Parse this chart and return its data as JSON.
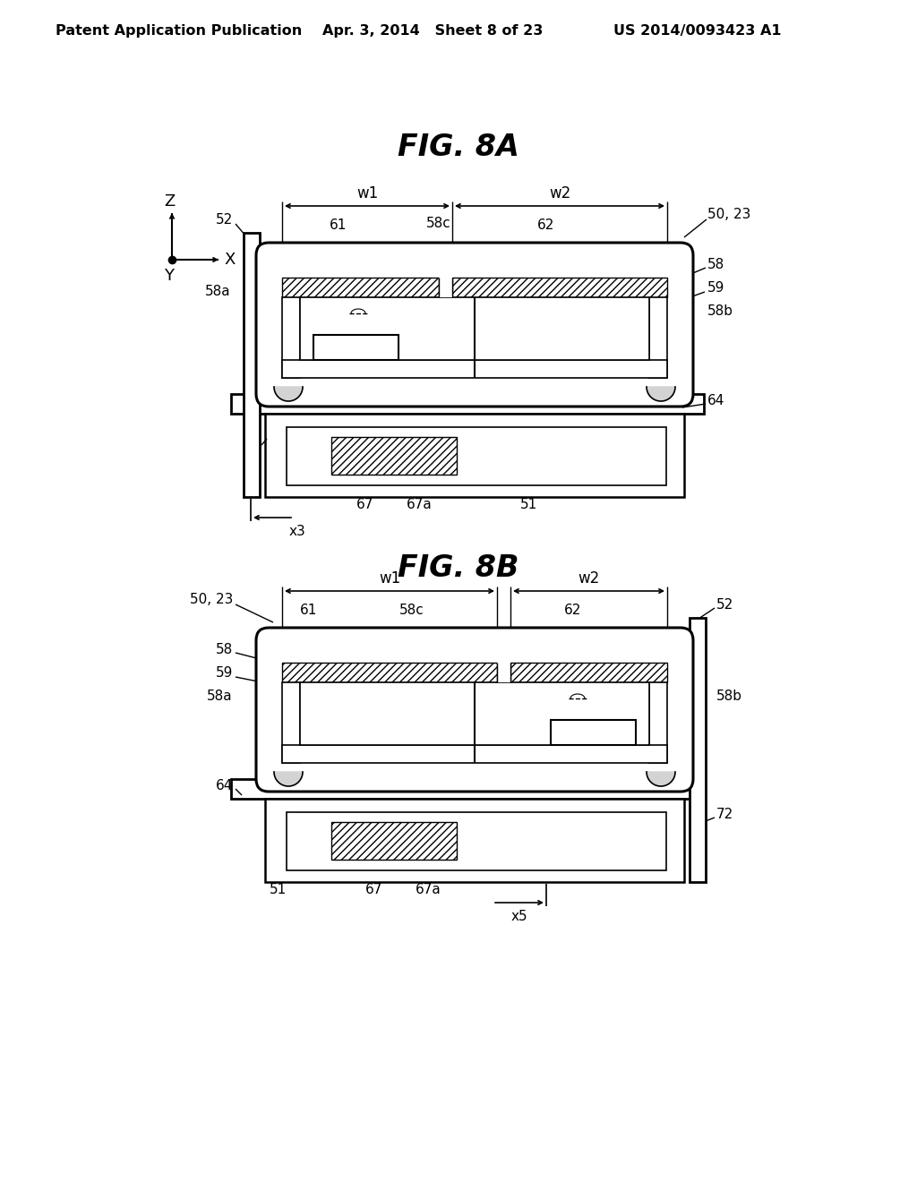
{
  "background_color": "#ffffff",
  "header_left": "Patent Application Publication",
  "header_mid": "Apr. 3, 2014   Sheet 8 of 23",
  "header_right": "US 2014/0093423 A1",
  "fig8a_title": "FIG. 8A",
  "fig8b_title": "FIG. 8B",
  "line_color": "#000000",
  "text_color": "#000000"
}
